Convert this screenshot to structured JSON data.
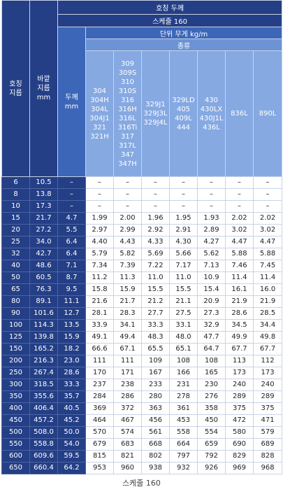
{
  "header": {
    "title": "호칭 두께",
    "schedule": "스케줄 160",
    "unit": "단위 무게 kg/m",
    "kind": "종류",
    "col_nominal": [
      "호칭",
      "지름"
    ],
    "col_od": [
      "바깥",
      "지름",
      "mm"
    ],
    "col_thick": [
      "두께",
      "mm"
    ],
    "types": [
      [
        "304",
        "304H",
        "304L",
        "304J1",
        "321",
        "321H"
      ],
      [
        "309",
        "309S",
        "310",
        "310S",
        "316",
        "316H",
        "316L",
        "316Ti",
        "317",
        "317L",
        "347",
        "347H"
      ],
      [
        "329J1",
        "329J3L",
        "329J4L"
      ],
      [
        "329LD",
        "405",
        "409L",
        "444"
      ],
      [
        "430",
        "430LX",
        "430J1L",
        "436L"
      ],
      [
        "836L"
      ],
      [
        "890L"
      ]
    ]
  },
  "rows": [
    [
      "6",
      "10.5",
      "–",
      "–",
      "–",
      "–",
      "–",
      "–",
      "–",
      "–"
    ],
    [
      "8",
      "13.8",
      "–",
      "–",
      "–",
      "–",
      "–",
      "–",
      "–",
      "–"
    ],
    [
      "10",
      "17.3",
      "–",
      "–",
      "–",
      "–",
      "–",
      "–",
      "–",
      "–"
    ],
    [
      "15",
      "21.7",
      "4.7",
      "1.99",
      "2.00",
      "1.96",
      "1.95",
      "1.93",
      "2.02",
      "2.02"
    ],
    [
      "20",
      "27.2",
      "5.5",
      "2.97",
      "2.99",
      "2.92",
      "2.91",
      "2.89",
      "3.02",
      "3.02"
    ],
    [
      "25",
      "34.0",
      "6.4",
      "4.40",
      "4.43",
      "4.33",
      "4.30",
      "4.27",
      "4.47",
      "4.47"
    ],
    [
      "32",
      "42.7",
      "6.4",
      "5.79",
      "5.82",
      "5.69",
      "5.66",
      "5.62",
      "5.88",
      "5.88"
    ],
    [
      "40",
      "48.6",
      "7.1",
      "7.34",
      "7.39",
      "7.22",
      "7.17",
      "7.13",
      "7.46",
      "7.45"
    ],
    [
      "50",
      "60.5",
      "8.7",
      "11.2",
      "11.3",
      "11.0",
      "11.0",
      "10.9",
      "11.4",
      "11.4"
    ],
    [
      "65",
      "76.3",
      "9.5",
      "15.8",
      "15.9",
      "15.5",
      "15.5",
      "15.4",
      "16.1",
      "16.0"
    ],
    [
      "80",
      "89.1",
      "11.1",
      "21.6",
      "21.7",
      "21.2",
      "21.1",
      "20.9",
      "21.9",
      "21.9"
    ],
    [
      "90",
      "101.6",
      "12.7",
      "28.1",
      "28.3",
      "27.7",
      "27.5",
      "27.3",
      "28.6",
      "28.5"
    ],
    [
      "100",
      "114.3",
      "13.5",
      "33.9",
      "34.1",
      "33.3",
      "33.1",
      "32.9",
      "34.5",
      "34.4"
    ],
    [
      "125",
      "139.8",
      "15.9",
      "49.1",
      "49.4",
      "48.3",
      "48.0",
      "47.7",
      "49.9",
      "49.8"
    ],
    [
      "150",
      "165.2",
      "18.2",
      "66.6",
      "67.1",
      "65.5",
      "65.1",
      "64.7",
      "67.7",
      "67.7"
    ],
    [
      "200",
      "216.3",
      "23.0",
      "111",
      "111",
      "109",
      "108",
      "108",
      "113",
      "112"
    ],
    [
      "250",
      "267.4",
      "28.6",
      "170",
      "171",
      "167",
      "166",
      "165",
      "173",
      "173"
    ],
    [
      "300",
      "318.5",
      "33.3",
      "237",
      "238",
      "233",
      "231",
      "230",
      "240",
      "240"
    ],
    [
      "350",
      "355.6",
      "35.7",
      "284",
      "286",
      "280",
      "278",
      "276",
      "289",
      "289"
    ],
    [
      "400",
      "406.4",
      "40.5",
      "369",
      "372",
      "363",
      "361",
      "358",
      "375",
      "375"
    ],
    [
      "450",
      "457.2",
      "45.2",
      "464",
      "467",
      "456",
      "453",
      "450",
      "472",
      "471"
    ],
    [
      "500",
      "508.0",
      "50.0",
      "570",
      "574",
      "561",
      "558",
      "554",
      "580",
      "579"
    ],
    [
      "550",
      "558.8",
      "54.0",
      "679",
      "683",
      "668",
      "664",
      "659",
      "690",
      "689"
    ],
    [
      "600",
      "609.6",
      "59.5",
      "815",
      "821",
      "802",
      "797",
      "792",
      "829",
      "828"
    ],
    [
      "650",
      "660.4",
      "64.2",
      "953",
      "960",
      "938",
      "932",
      "926",
      "969",
      "968"
    ]
  ],
  "caption": "스케줄 160"
}
